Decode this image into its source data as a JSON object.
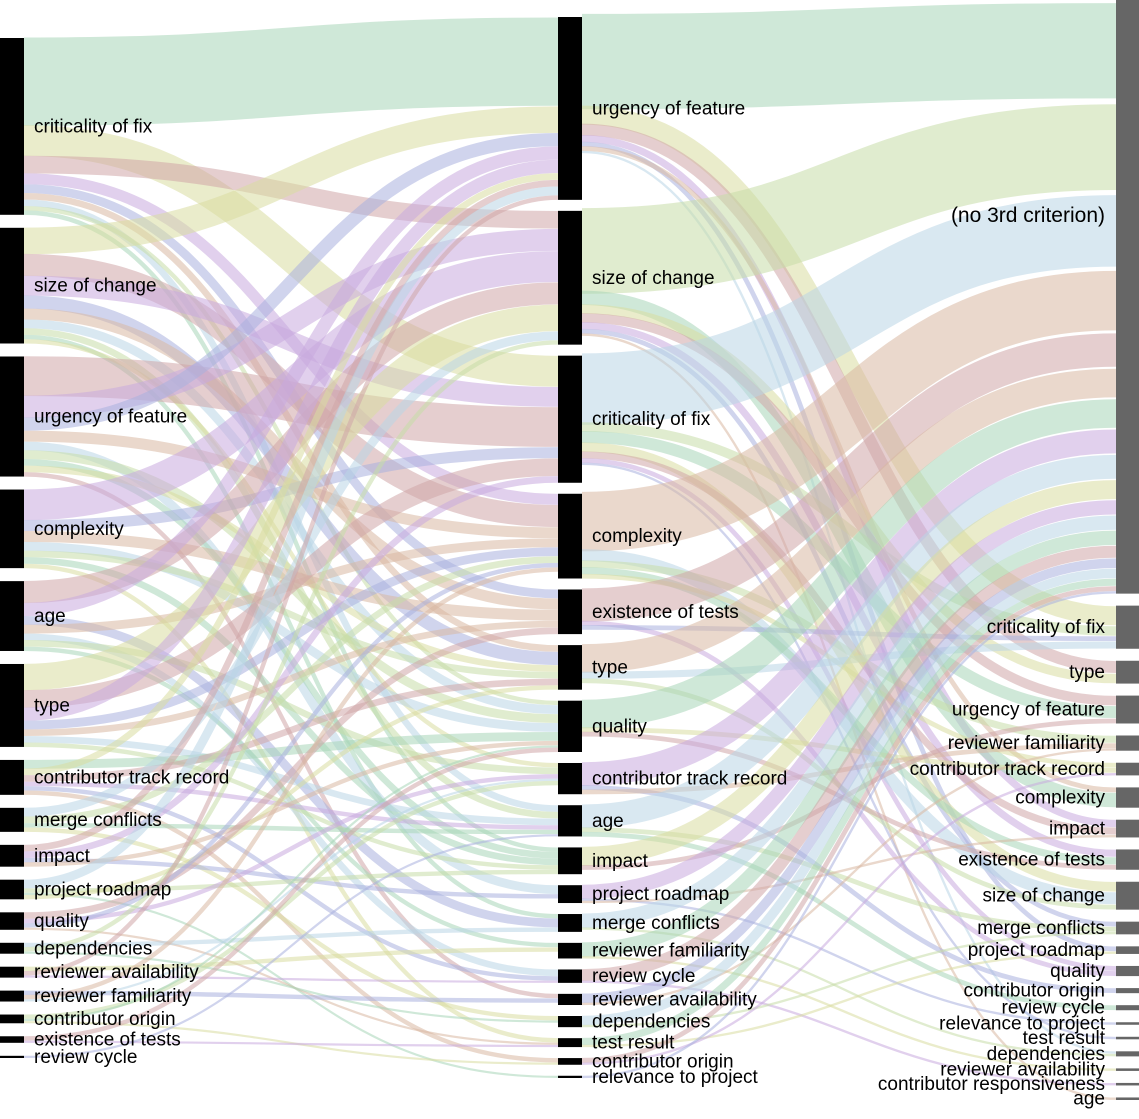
{
  "colors": {
    "left_bar": "#000000",
    "mid_bar": "#000000",
    "right_bar": "#666666",
    "flow_palette": [
      "#a8d5b8",
      "#d9dca0",
      "#cfa6a8",
      "#c9a9de",
      "#a9b1de",
      "#d8b8a2",
      "#b9d5e6",
      "#c7dda8"
    ]
  },
  "columns": {
    "first": [
      {
        "label": "criticality of fix"
      },
      {
        "label": "size of change"
      },
      {
        "label": "urgency of feature"
      },
      {
        "label": "complexity"
      },
      {
        "label": "age"
      },
      {
        "label": "type"
      },
      {
        "label": "contributor track record"
      },
      {
        "label": "merge conflicts"
      },
      {
        "label": "impact"
      },
      {
        "label": "project roadmap"
      },
      {
        "label": "quality"
      },
      {
        "label": "dependencies"
      },
      {
        "label": "reviewer availability"
      },
      {
        "label": "reviewer familiarity"
      },
      {
        "label": "contributor origin"
      },
      {
        "label": "existence of tests"
      },
      {
        "label": "review cycle"
      }
    ],
    "second": [
      {
        "label": "urgency of feature"
      },
      {
        "label": "size of change"
      },
      {
        "label": "criticality of fix"
      },
      {
        "label": "complexity"
      },
      {
        "label": "existence of tests"
      },
      {
        "label": "type"
      },
      {
        "label": "quality"
      },
      {
        "label": "contributor track record"
      },
      {
        "label": "age"
      },
      {
        "label": "impact"
      },
      {
        "label": "project roadmap"
      },
      {
        "label": "merge conflicts"
      },
      {
        "label": "reviewer familiarity"
      },
      {
        "label": "review cycle"
      },
      {
        "label": "reviewer availability"
      },
      {
        "label": "dependencies"
      },
      {
        "label": "test result"
      },
      {
        "label": "contributor origin"
      },
      {
        "label": "relevance to project"
      }
    ],
    "third": [
      {
        "label": "(no 3rd criterion)"
      },
      {
        "label": "criticality of fix"
      },
      {
        "label": "type"
      },
      {
        "label": "urgency of feature"
      },
      {
        "label": "reviewer familiarity"
      },
      {
        "label": "contributor track record"
      },
      {
        "label": "complexity"
      },
      {
        "label": "impact"
      },
      {
        "label": "existence of tests"
      },
      {
        "label": "size of change"
      },
      {
        "label": "merge conflicts"
      },
      {
        "label": "project roadmap"
      },
      {
        "label": "quality"
      },
      {
        "label": "contributor origin"
      },
      {
        "label": "review cycle"
      },
      {
        "label": "relevance to project"
      },
      {
        "label": "test result"
      },
      {
        "label": "dependencies"
      },
      {
        "label": "reviewer availability"
      },
      {
        "label": "contributor responsiveness"
      },
      {
        "label": "age"
      }
    ]
  },
  "flows_first_to_second": [
    {
      "from": "criticality of fix",
      "to": "urgency of feature",
      "value": 40
    },
    {
      "from": "criticality of fix",
      "to": "criticality of fix",
      "value": 14
    },
    {
      "from": "criticality of fix",
      "to": "size of change",
      "value": 8
    },
    {
      "from": "criticality of fix",
      "to": "complexity",
      "value": 5
    },
    {
      "from": "criticality of fix",
      "to": "existence of tests",
      "value": 4
    },
    {
      "from": "criticality of fix",
      "to": "type",
      "value": 3
    },
    {
      "from": "criticality of fix",
      "to": "age",
      "value": 3
    },
    {
      "from": "criticality of fix",
      "to": "quality",
      "value": 2
    },
    {
      "from": "criticality of fix",
      "to": "impact",
      "value": 2
    },
    {
      "from": "size of change",
      "to": "urgency of feature",
      "value": 12
    },
    {
      "from": "size of change",
      "to": "complexity",
      "value": 10
    },
    {
      "from": "size of change",
      "to": "criticality of fix",
      "value": 9
    },
    {
      "from": "size of change",
      "to": "type",
      "value": 6
    },
    {
      "from": "size of change",
      "to": "existence of tests",
      "value": 5
    },
    {
      "from": "size of change",
      "to": "quality",
      "value": 4
    },
    {
      "from": "size of change",
      "to": "age",
      "value": 3
    },
    {
      "from": "size of change",
      "to": "merge conflicts",
      "value": 2
    },
    {
      "from": "size of change",
      "to": "contributor track record",
      "value": 2
    },
    {
      "from": "urgency of feature",
      "to": "criticality of fix",
      "value": 18
    },
    {
      "from": "urgency of feature",
      "to": "size of change",
      "value": 10
    },
    {
      "from": "urgency of feature",
      "to": "urgency of feature",
      "value": 6
    },
    {
      "from": "urgency of feature",
      "to": "complexity",
      "value": 5
    },
    {
      "from": "urgency of feature",
      "to": "project roadmap",
      "value": 4
    },
    {
      "from": "urgency of feature",
      "to": "quality",
      "value": 4
    },
    {
      "from": "urgency of feature",
      "to": "impact",
      "value": 3
    },
    {
      "from": "urgency of feature",
      "to": "type",
      "value": 3
    },
    {
      "from": "urgency of feature",
      "to": "reviewer availability",
      "value": 2
    },
    {
      "from": "complexity",
      "to": "size of change",
      "value": 14
    },
    {
      "from": "complexity",
      "to": "criticality of fix",
      "value": 5
    },
    {
      "from": "complexity",
      "to": "existence of tests",
      "value": 5
    },
    {
      "from": "complexity",
      "to": "quality",
      "value": 4
    },
    {
      "from": "complexity",
      "to": "type",
      "value": 3
    },
    {
      "from": "complexity",
      "to": "impact",
      "value": 3
    },
    {
      "from": "complexity",
      "to": "test result",
      "value": 2
    },
    {
      "from": "age",
      "to": "size of change",
      "value": 10
    },
    {
      "from": "age",
      "to": "urgency of feature",
      "value": 6
    },
    {
      "from": "age",
      "to": "merge conflicts",
      "value": 4
    },
    {
      "from": "age",
      "to": "complexity",
      "value": 4
    },
    {
      "from": "age",
      "to": "review cycle",
      "value": 3
    },
    {
      "from": "age",
      "to": "contributor track record",
      "value": 3
    },
    {
      "from": "age",
      "to": "reviewer familiarity",
      "value": 2
    },
    {
      "from": "type",
      "to": "size of change",
      "value": 12
    },
    {
      "from": "type",
      "to": "criticality of fix",
      "value": 8
    },
    {
      "from": "type",
      "to": "urgency of feature",
      "value": 6
    },
    {
      "from": "type",
      "to": "complexity",
      "value": 4
    },
    {
      "from": "type",
      "to": "existence of tests",
      "value": 3
    },
    {
      "from": "type",
      "to": "age",
      "value": 3
    },
    {
      "from": "type",
      "to": "impact",
      "value": 2
    },
    {
      "from": "contributor track record",
      "to": "quality",
      "value": 4
    },
    {
      "from": "contributor track record",
      "to": "urgency of feature",
      "value": 3
    },
    {
      "from": "contributor track record",
      "to": "type",
      "value": 3
    },
    {
      "from": "contributor track record",
      "to": "age",
      "value": 2
    },
    {
      "from": "contributor track record",
      "to": "review cycle",
      "value": 2
    },
    {
      "from": "contributor track record",
      "to": "contributor origin",
      "value": 2
    },
    {
      "from": "merge conflicts",
      "to": "size of change",
      "value": 4
    },
    {
      "from": "merge conflicts",
      "to": "complexity",
      "value": 3
    },
    {
      "from": "merge conflicts",
      "to": "age",
      "value": 2
    },
    {
      "from": "merge conflicts",
      "to": "dependencies",
      "value": 2
    },
    {
      "from": "impact",
      "to": "urgency of feature",
      "value": 3
    },
    {
      "from": "impact",
      "to": "criticality of fix",
      "value": 3
    },
    {
      "from": "impact",
      "to": "project roadmap",
      "value": 2
    },
    {
      "from": "impact",
      "to": "quality",
      "value": 2
    },
    {
      "from": "project roadmap",
      "to": "urgency of feature",
      "value": 4
    },
    {
      "from": "project roadmap",
      "to": "impact",
      "value": 2
    },
    {
      "from": "project roadmap",
      "to": "relevance to project",
      "value": 1
    },
    {
      "from": "project roadmap",
      "to": "type",
      "value": 2
    },
    {
      "from": "quality",
      "to": "existence of tests",
      "value": 3
    },
    {
      "from": "quality",
      "to": "contributor track record",
      "value": 2
    },
    {
      "from": "quality",
      "to": "complexity",
      "value": 2
    },
    {
      "from": "quality",
      "to": "test result",
      "value": 1
    },
    {
      "from": "dependencies",
      "to": "merge conflicts",
      "value": 2
    },
    {
      "from": "dependencies",
      "to": "size of change",
      "value": 2
    },
    {
      "from": "dependencies",
      "to": "dependencies",
      "value": 1
    },
    {
      "from": "reviewer availability",
      "to": "reviewer familiarity",
      "value": 2
    },
    {
      "from": "reviewer availability",
      "to": "urgency of feature",
      "value": 2
    },
    {
      "from": "reviewer availability",
      "to": "review cycle",
      "value": 1
    },
    {
      "from": "reviewer familiarity",
      "to": "reviewer availability",
      "value": 2
    },
    {
      "from": "reviewer familiarity",
      "to": "complexity",
      "value": 2
    },
    {
      "from": "reviewer familiarity",
      "to": "contributor track record",
      "value": 1
    },
    {
      "from": "contributor origin",
      "to": "contributor track record",
      "value": 2
    },
    {
      "from": "contributor origin",
      "to": "quality",
      "value": 1
    },
    {
      "from": "contributor origin",
      "to": "contributor origin",
      "value": 1
    },
    {
      "from": "existence of tests",
      "to": "quality",
      "value": 2
    },
    {
      "from": "existence of tests",
      "to": "test result",
      "value": 1
    },
    {
      "from": "review cycle",
      "to": "age",
      "value": 1
    }
  ],
  "flows_second_to_third": [
    {
      "from": "urgency of feature",
      "to": "(no 3rd criterion)",
      "value": 40
    },
    {
      "from": "urgency of feature",
      "to": "criticality of fix",
      "value": 8
    },
    {
      "from": "urgency of feature",
      "to": "type",
      "value": 5
    },
    {
      "from": "urgency of feature",
      "to": "impact",
      "value": 3
    },
    {
      "from": "urgency of feature",
      "to": "project roadmap",
      "value": 2
    },
    {
      "from": "urgency of feature",
      "to": "complexity",
      "value": 2
    },
    {
      "from": "urgency of feature",
      "to": "dependencies",
      "value": 1
    },
    {
      "from": "size of change",
      "to": "(no 3rd criterion)",
      "value": 36
    },
    {
      "from": "size of change",
      "to": "complexity",
      "value": 6
    },
    {
      "from": "size of change",
      "to": "type",
      "value": 4
    },
    {
      "from": "size of change",
      "to": "urgency of feature",
      "value": 4
    },
    {
      "from": "size of change",
      "to": "existence of tests",
      "value": 3
    },
    {
      "from": "size of change",
      "to": "merge conflicts",
      "value": 2
    },
    {
      "from": "size of change",
      "to": "age",
      "value": 1
    },
    {
      "from": "criticality of fix",
      "to": "(no 3rd criterion)",
      "value": 30
    },
    {
      "from": "criticality of fix",
      "to": "criticality of fix",
      "value": 4
    },
    {
      "from": "criticality of fix",
      "to": "urgency of feature",
      "value": 5
    },
    {
      "from": "criticality of fix",
      "to": "size of change",
      "value": 4
    },
    {
      "from": "criticality of fix",
      "to": "impact",
      "value": 3
    },
    {
      "from": "criticality of fix",
      "to": "quality",
      "value": 2
    },
    {
      "from": "criticality of fix",
      "to": "test result",
      "value": 1
    },
    {
      "from": "complexity",
      "to": "(no 3rd criterion)",
      "value": 25
    },
    {
      "from": "complexity",
      "to": "size of change",
      "value": 5
    },
    {
      "from": "complexity",
      "to": "reviewer familiarity",
      "value": 3
    },
    {
      "from": "complexity",
      "to": "existence of tests",
      "value": 3
    },
    {
      "from": "complexity",
      "to": "contributor track record",
      "value": 2
    },
    {
      "from": "existence of tests",
      "to": "(no 3rd criterion)",
      "value": 14
    },
    {
      "from": "existence of tests",
      "to": "quality",
      "value": 2
    },
    {
      "from": "existence of tests",
      "to": "criticality of fix",
      "value": 2
    },
    {
      "from": "type",
      "to": "(no 3rd criterion)",
      "value": 12
    },
    {
      "from": "type",
      "to": "criticality of fix",
      "value": 3
    },
    {
      "from": "type",
      "to": "size of change",
      "value": 2
    },
    {
      "from": "quality",
      "to": "(no 3rd criterion)",
      "value": 12
    },
    {
      "from": "quality",
      "to": "contributor track record",
      "value": 2
    },
    {
      "from": "quality",
      "to": "existence of tests",
      "value": 2
    },
    {
      "from": "contributor track record",
      "to": "(no 3rd criterion)",
      "value": 10
    },
    {
      "from": "contributor track record",
      "to": "contributor origin",
      "value": 2
    },
    {
      "from": "contributor track record",
      "to": "reviewer familiarity",
      "value": 2
    },
    {
      "from": "age",
      "to": "(no 3rd criterion)",
      "value": 10
    },
    {
      "from": "age",
      "to": "merge conflicts",
      "value": 2
    },
    {
      "from": "age",
      "to": "review cycle",
      "value": 2
    },
    {
      "from": "impact",
      "to": "(no 3rd criterion)",
      "value": 8
    },
    {
      "from": "impact",
      "to": "urgency of feature",
      "value": 2
    },
    {
      "from": "project roadmap",
      "to": "(no 3rd criterion)",
      "value": 6
    },
    {
      "from": "project roadmap",
      "to": "relevance to project",
      "value": 1
    },
    {
      "from": "project roadmap",
      "to": "impact",
      "value": 1
    },
    {
      "from": "merge conflicts",
      "to": "(no 3rd criterion)",
      "value": 6
    },
    {
      "from": "merge conflicts",
      "to": "dependencies",
      "value": 1
    },
    {
      "from": "reviewer familiarity",
      "to": "(no 3rd criterion)",
      "value": 6
    },
    {
      "from": "reviewer familiarity",
      "to": "reviewer availability",
      "value": 1
    },
    {
      "from": "review cycle",
      "to": "(no 3rd criterion)",
      "value": 5
    },
    {
      "from": "review cycle",
      "to": "contributor responsiveness",
      "value": 1
    },
    {
      "from": "reviewer availability",
      "to": "(no 3rd criterion)",
      "value": 4
    },
    {
      "from": "reviewer availability",
      "to": "reviewer familiarity",
      "value": 1
    },
    {
      "from": "dependencies",
      "to": "(no 3rd criterion)",
      "value": 4
    },
    {
      "from": "dependencies",
      "to": "merge conflicts",
      "value": 1
    },
    {
      "from": "test result",
      "to": "(no 3rd criterion)",
      "value": 3
    },
    {
      "from": "test result",
      "to": "project roadmap",
      "value": 1
    },
    {
      "from": "contributor origin",
      "to": "(no 3rd criterion)",
      "value": 2
    },
    {
      "from": "contributor origin",
      "to": "contributor track record",
      "value": 1
    },
    {
      "from": "relevance to project",
      "to": "(no 3rd criterion)",
      "value": 1
    }
  ]
}
